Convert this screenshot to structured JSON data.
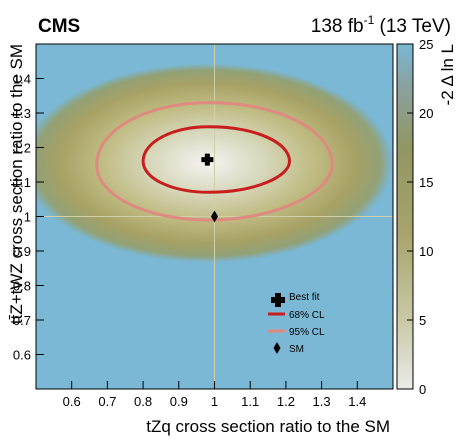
{
  "chart_data": {
    "type": "heatmap",
    "experiment": "CMS",
    "lumi_prefix": "138 fb",
    "lumi_exp": "-1",
    "lumi_suffix": " (13 TeV)",
    "xlabel": "tZq cross section ratio to the SM",
    "ylabel": "tt̄Z+tWZ cross section ratio to the SM",
    "zlabel": "-2 Δ ln L",
    "xlim": [
      0.5,
      1.5
    ],
    "ylim": [
      0.5,
      1.5
    ],
    "zlim": [
      0,
      25
    ],
    "x_ticks": [
      "0.6",
      "0.7",
      "0.8",
      "0.9",
      "1",
      "1.1",
      "1.2",
      "1.3",
      "1.4"
    ],
    "y_ticks": [
      "0.6",
      "0.7",
      "0.8",
      "0.9",
      "1",
      "1.1",
      "1.2",
      "1.3",
      "1.4"
    ],
    "z_ticks": [
      "0",
      "5",
      "10",
      "15",
      "20",
      "25"
    ],
    "best_fit": {
      "x": 0.98,
      "y": 1.165
    },
    "sm": {
      "x": 1.0,
      "y": 1.0
    },
    "contours": [
      {
        "name": "68% CL",
        "cx": 0.985,
        "cy": 1.16,
        "x_min": 0.8,
        "x_max": 1.21,
        "y_min": 1.07,
        "y_max": 1.26,
        "color": "#c81e1e"
      },
      {
        "name": "95% CL",
        "cx": 0.985,
        "cy": 1.15,
        "x_min": 0.67,
        "x_max": 1.33,
        "y_min": 0.99,
        "y_max": 1.33,
        "color": "#de8a80"
      }
    ],
    "legend": {
      "placement": "bottom-right",
      "entries": [
        {
          "label": "Best fit",
          "marker": "cross-icon"
        },
        {
          "label": "68% CL",
          "marker": "red-line"
        },
        {
          "label": "95% CL",
          "marker": "pink-line"
        },
        {
          "label": "SM",
          "marker": "diamond-icon"
        }
      ]
    },
    "colors": {
      "plateau": "#7ab8d6",
      "mid": "#9a9a62",
      "outer_ring": "#c6c286",
      "center": "#f2f2f0"
    }
  }
}
